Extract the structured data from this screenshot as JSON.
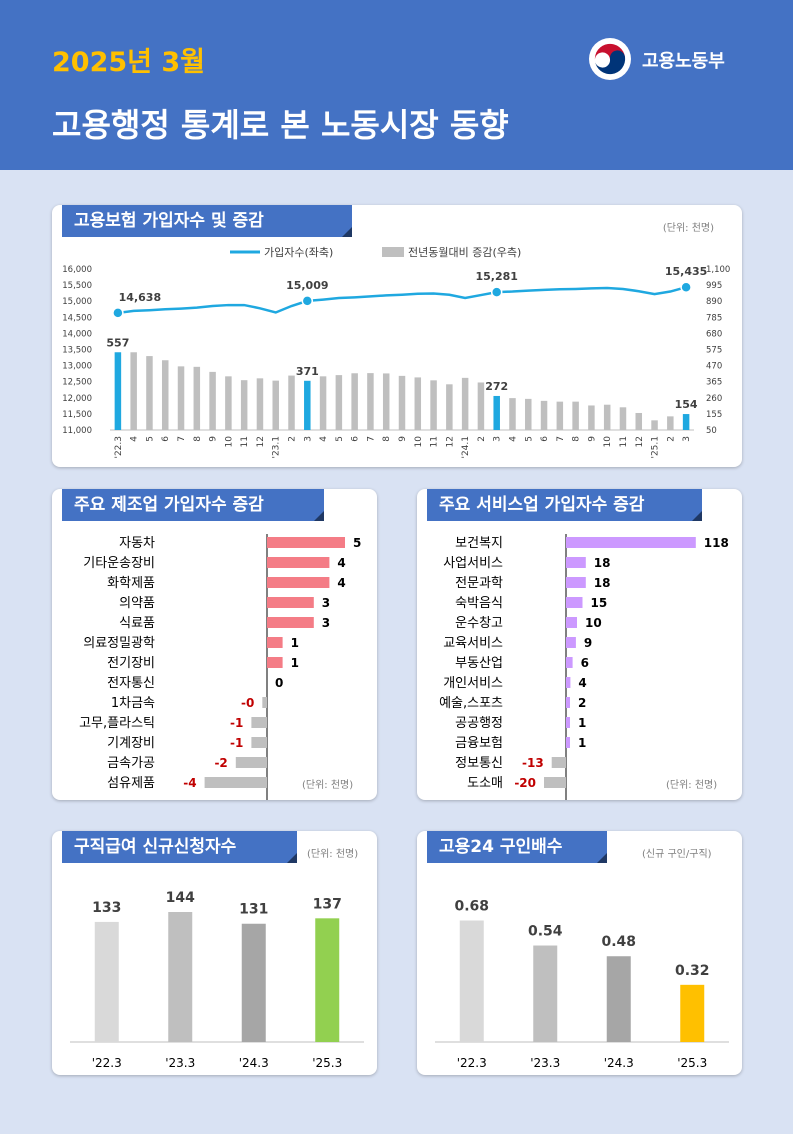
{
  "header": {
    "date": "2025년 3월",
    "title": "고용행정 통계로 본 노동시장 동향",
    "ministry": "고용노동부"
  },
  "colors": {
    "header_bg": "#4472c4",
    "accent_yellow": "#ffc000",
    "line_blue": "#1fa8e0",
    "bar_gray": "#bfbfbf",
    "bar_highlight": "#1fa8e0",
    "mfg_bar": "#f47c86",
    "svc_bar": "#cc99ff",
    "neg_bar": "#bfbfbf",
    "neg_text": "#c00000",
    "green": "#92d050",
    "gold": "#ffc000"
  },
  "chart_data": [
    {
      "id": "insurance",
      "type": "bar+line",
      "title": "고용보험 가입자수 및 증감",
      "unit": "(단위: 천명)",
      "legend": [
        "가입자수(좌축)",
        "전년동월대비 증감(우측)"
      ],
      "x": [
        "'22.3",
        "4",
        "5",
        "6",
        "7",
        "8",
        "9",
        "10",
        "11",
        "12",
        "'23.1",
        "2",
        "3",
        "4",
        "5",
        "6",
        "7",
        "8",
        "9",
        "10",
        "11",
        "12",
        "'24.1",
        "2",
        "3",
        "4",
        "5",
        "6",
        "7",
        "8",
        "9",
        "10",
        "11",
        "12",
        "'25.1",
        "2",
        "3"
      ],
      "line_values": [
        14638,
        14700,
        14720,
        14750,
        14770,
        14800,
        14850,
        14880,
        14880,
        14780,
        14650,
        14850,
        15009,
        15050,
        15100,
        15120,
        15150,
        15180,
        15200,
        15230,
        15240,
        15200,
        15100,
        15190,
        15281,
        15300,
        15330,
        15350,
        15370,
        15380,
        15400,
        15410,
        15380,
        15310,
        15220,
        15300,
        15435
      ],
      "bar_values": [
        557,
        557,
        532,
        505,
        465,
        462,
        429,
        400,
        375,
        387,
        372,
        405,
        371,
        400,
        408,
        420,
        421,
        419,
        403,
        393,
        374,
        348,
        390,
        360,
        272,
        258,
        253,
        240,
        235,
        235,
        210,
        215,
        198,
        161,
        113,
        139,
        154
      ],
      "highlight": [
        0,
        12,
        24,
        36
      ],
      "line_labels": [
        {
          "i": 0,
          "v": "14,638"
        },
        {
          "i": 12,
          "v": "15,009"
        },
        {
          "i": 24,
          "v": "15,281"
        },
        {
          "i": 36,
          "v": "15,435"
        }
      ],
      "bar_labels": [
        {
          "i": 0,
          "v": "557"
        },
        {
          "i": 12,
          "v": "371"
        },
        {
          "i": 24,
          "v": "272"
        },
        {
          "i": 36,
          "v": "154"
        }
      ],
      "yleft": {
        "min": 11000,
        "max": 16000,
        "ticks": [
          "16,000",
          "15,500",
          "15,000",
          "14,500",
          "14,000",
          "13,500",
          "13,000",
          "12,500",
          "12,000",
          "11,500",
          "11,000"
        ]
      },
      "yright": {
        "min": 50,
        "max": 1100,
        "ticks": [
          "1,100",
          "995",
          "890",
          "785",
          "680",
          "575",
          "470",
          "365",
          "260",
          "155",
          "50"
        ]
      }
    },
    {
      "id": "manufacturing",
      "type": "bar",
      "title": "주요 제조업 가입자수 증감",
      "unit": "(단위: 천명)",
      "categories": [
        "자동차",
        "기타운송장비",
        "화학제품",
        "의약품",
        "식료품",
        "의료정밀광학",
        "전기장비",
        "전자통신",
        "1차금속",
        "고무,플라스틱",
        "기계장비",
        "금속가공",
        "섬유제품"
      ],
      "values": [
        5,
        4,
        4,
        3,
        3,
        1,
        1,
        0,
        -0.3,
        -1,
        -1,
        -2,
        -4
      ],
      "labels": [
        "5",
        "4",
        "4",
        "3",
        "3",
        "1",
        "1",
        "0",
        "-0",
        "-1",
        "-1",
        "-2",
        "-4"
      ]
    },
    {
      "id": "services",
      "type": "bar",
      "title": "주요 서비스업 가입자수 증감",
      "unit": "(단위: 천명)",
      "categories": [
        "보건복지",
        "사업서비스",
        "전문과학",
        "숙박음식",
        "운수창고",
        "교육서비스",
        "부동산업",
        "개인서비스",
        "예술,스포츠",
        "공공행정",
        "금융보험",
        "정보통신",
        "도소매"
      ],
      "values": [
        118,
        18,
        18,
        15,
        10,
        9,
        6,
        4,
        2,
        1,
        1,
        -13,
        -20
      ],
      "labels": [
        "118",
        "18",
        "18",
        "15",
        "10",
        "9",
        "6",
        "4",
        "2",
        "1",
        "1",
        "-13",
        "-20"
      ]
    },
    {
      "id": "jobseeking",
      "type": "bar",
      "title": "구직급여 신규신청자수",
      "unit": "(단위: 천명)",
      "categories": [
        "'22.3",
        "'23.3",
        "'24.3",
        "'25.3"
      ],
      "values": [
        133,
        144,
        131,
        137
      ],
      "colors": [
        "#d9d9d9",
        "#bfbfbf",
        "#a6a6a6",
        "#92d050"
      ]
    },
    {
      "id": "ratio",
      "type": "bar",
      "title": "고용24 구인배수",
      "unit": "(신규 구인/구직)",
      "categories": [
        "'22.3",
        "'23.3",
        "'24.3",
        "'25.3"
      ],
      "values": [
        0.68,
        0.54,
        0.48,
        0.32
      ],
      "labels": [
        "0.68",
        "0.54",
        "0.48",
        "0.32"
      ],
      "colors": [
        "#d9d9d9",
        "#bfbfbf",
        "#a6a6a6",
        "#ffc000"
      ]
    }
  ]
}
